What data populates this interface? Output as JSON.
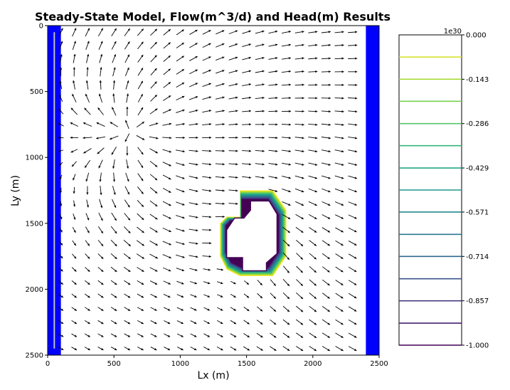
{
  "chart_data": {
    "type": "quiver-contour",
    "title": "Steady-State Model, Flow(m^3/d) and Head(m) Results",
    "xlabel": "Lx (m)",
    "ylabel": "Ly (m)",
    "xlim": [
      0,
      2500
    ],
    "ylim": [
      2500,
      0
    ],
    "y_inverted": true,
    "xticks": [
      "0",
      "500",
      "1000",
      "1500",
      "2000",
      "2500"
    ],
    "yticks": [
      "0",
      "500",
      "1000",
      "1500",
      "2000",
      "2500"
    ],
    "boundaries": [
      {
        "name": "left constant-head boundary",
        "x_range": [
          0,
          100
        ],
        "color": "#0000ff"
      },
      {
        "name": "right constant-head boundary",
        "x_range": [
          2400,
          2500
        ],
        "color": "#0000ff"
      }
    ],
    "well_line": {
      "x": 50,
      "y_range": [
        50,
        2450
      ],
      "color": "#bdbdbd"
    },
    "inactive_region_outline": [
      [
        1450,
        1250
      ],
      [
        1700,
        1250
      ],
      [
        1800,
        1400
      ],
      [
        1800,
        1750
      ],
      [
        1700,
        1900
      ],
      [
        1450,
        1900
      ],
      [
        1350,
        1850
      ],
      [
        1300,
        1750
      ],
      [
        1300,
        1500
      ],
      [
        1350,
        1450
      ],
      [
        1450,
        1450
      ]
    ],
    "inactive_region_inner": [
      [
        1530,
        1330
      ],
      [
        1670,
        1330
      ],
      [
        1730,
        1430
      ],
      [
        1730,
        1730
      ],
      [
        1650,
        1800
      ],
      [
        1650,
        1860
      ],
      [
        1470,
        1860
      ],
      [
        1470,
        1760
      ],
      [
        1350,
        1760
      ],
      [
        1350,
        1550
      ],
      [
        1410,
        1460
      ],
      [
        1480,
        1460
      ],
      [
        1530,
        1400
      ]
    ],
    "colorbar": {
      "multiplier_label": "1e30",
      "ticks": [
        "0.000",
        "-0.143",
        "-0.286",
        "-0.429",
        "-0.571",
        "-0.714",
        "-0.857",
        "-1.000"
      ],
      "levels": [
        0.0,
        -0.0714,
        -0.143,
        -0.214,
        -0.286,
        -0.357,
        -0.429,
        -0.5,
        -0.571,
        -0.643,
        -0.714,
        -0.786,
        -0.857,
        -0.929,
        -1.0
      ],
      "level_colors": [
        "#fde725",
        "#d2e21b",
        "#a5db36",
        "#7ad151",
        "#54c568",
        "#35b779",
        "#22a884",
        "#1f988b",
        "#23888e",
        "#2a788e",
        "#31688e",
        "#3b528b",
        "#443983",
        "#482173",
        "#440154"
      ]
    },
    "quiver": {
      "x_start": 100,
      "x_step": 100,
      "nx": 23,
      "y_start": 50,
      "y_step": 100,
      "ny": 25,
      "base_angle_deg": 0,
      "source_swirl": {
        "center": [
          650,
          800
        ],
        "strength": 0.9
      }
    }
  }
}
